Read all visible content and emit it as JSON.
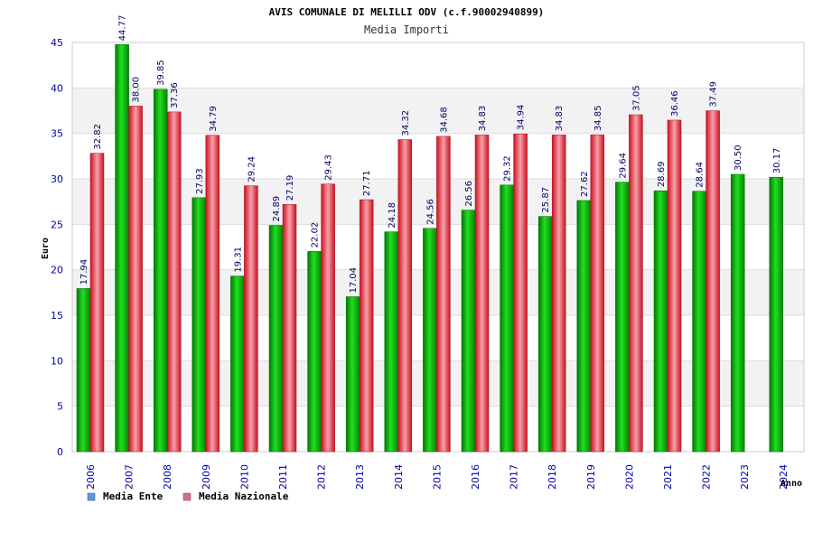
{
  "chart_data": {
    "type": "bar",
    "title": "AVIS COMUNALE DI MELILLI ODV (c.f.90002940899)",
    "subtitle": "Media Importi",
    "xlabel": "Anno",
    "ylabel": "Euro",
    "ylim": [
      0,
      45
    ],
    "yticks": [
      0,
      5,
      10,
      15,
      20,
      25,
      30,
      35,
      40,
      45
    ],
    "grid": true,
    "legend_position": "bottom-left",
    "categories": [
      "2006",
      "2007",
      "2008",
      "2009",
      "2010",
      "2011",
      "2012",
      "2013",
      "2014",
      "2015",
      "2016",
      "2017",
      "2018",
      "2019",
      "2020",
      "2021",
      "2022",
      "2023",
      "2024"
    ],
    "series": [
      {
        "name": "Media Ente",
        "color": "#00aa00",
        "legend_color": "#5599ee",
        "values": [
          17.94,
          44.77,
          39.85,
          27.93,
          19.31,
          24.89,
          22.02,
          17.04,
          24.18,
          24.56,
          26.56,
          29.32,
          25.87,
          27.62,
          29.64,
          28.69,
          28.64,
          30.5,
          30.17
        ],
        "labels": [
          "17.94",
          "44.77",
          "39.85",
          "27.93",
          "19.31",
          "24.89",
          "22.02",
          "17.04",
          "24.18",
          "24.56",
          "26.56",
          "29.32",
          "25.87",
          "27.62",
          "29.64",
          "28.69",
          "28.64",
          "30.50",
          "30.17"
        ]
      },
      {
        "name": "Media Nazionale",
        "color": "#dd2233",
        "legend_color": "#dd6699",
        "values": [
          32.82,
          38.0,
          37.36,
          34.79,
          29.24,
          27.19,
          29.43,
          27.71,
          34.32,
          34.68,
          34.83,
          34.94,
          34.83,
          34.85,
          37.05,
          36.46,
          37.49,
          null,
          null
        ],
        "labels": [
          "32.82",
          "38.00",
          "37.36",
          "34.79",
          "29.24",
          "27.19",
          "29.43",
          "27.71",
          "34.32",
          "34.68",
          "34.83",
          "34.94",
          "34.83",
          "34.85",
          "37.05",
          "36.46",
          "37.49",
          null,
          null
        ]
      }
    ]
  }
}
